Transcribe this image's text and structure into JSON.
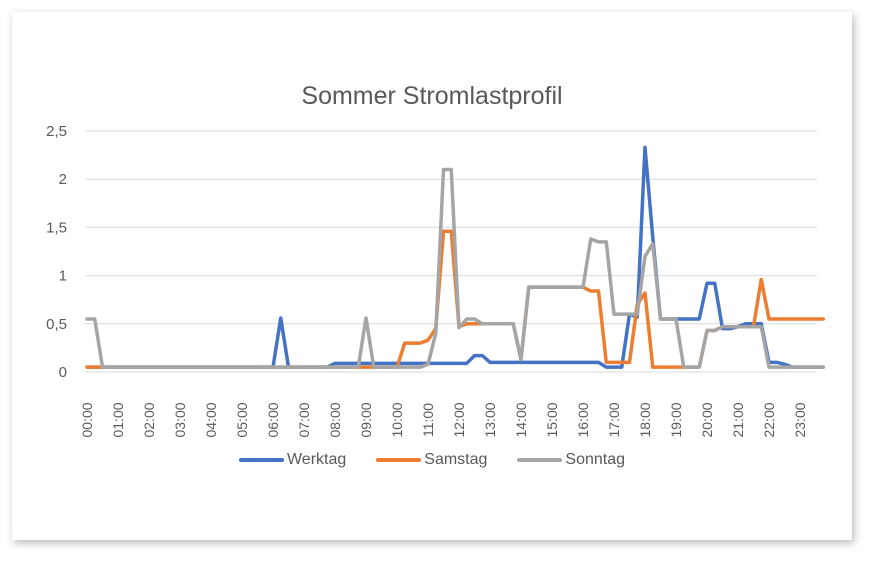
{
  "chart_data": {
    "type": "line",
    "title": "Sommer Stromlastprofil",
    "xlabel": "",
    "ylabel": "",
    "ylim": [
      0,
      2.5
    ],
    "yticks": [
      "0",
      "0,5",
      "1",
      "1,5",
      "2",
      "2,5"
    ],
    "ytick_values": [
      0,
      0.5,
      1,
      1.5,
      2,
      2.5
    ],
    "grid": true,
    "legend_position": "bottom",
    "x_tick_labels": [
      "00:00",
      "01:00",
      "02:00",
      "03:00",
      "04:00",
      "05:00",
      "06:00",
      "07:00",
      "08:00",
      "09:00",
      "10:00",
      "11:00",
      "12:00",
      "13:00",
      "14:00",
      "15:00",
      "16:00",
      "17:00",
      "18:00",
      "19:00",
      "20:00",
      "21:00",
      "22:00",
      "23:00"
    ],
    "x_interval_minutes": 15,
    "points_per_series": 96,
    "series": [
      {
        "name": "Werktag",
        "color": "#4472C4",
        "values": [
          0.05,
          0.05,
          0.05,
          0.05,
          0.05,
          0.05,
          0.05,
          0.05,
          0.05,
          0.05,
          0.05,
          0.05,
          0.05,
          0.05,
          0.05,
          0.05,
          0.05,
          0.05,
          0.05,
          0.05,
          0.05,
          0.05,
          0.05,
          0.05,
          0.05,
          0.56,
          0.05,
          0.05,
          0.05,
          0.05,
          0.05,
          0.05,
          0.09,
          0.09,
          0.09,
          0.09,
          0.09,
          0.09,
          0.09,
          0.09,
          0.09,
          0.09,
          0.09,
          0.09,
          0.09,
          0.09,
          0.09,
          0.09,
          0.09,
          0.09,
          0.17,
          0.17,
          0.1,
          0.1,
          0.1,
          0.1,
          0.1,
          0.1,
          0.1,
          0.1,
          0.1,
          0.1,
          0.1,
          0.1,
          0.1,
          0.1,
          0.1,
          0.05,
          0.05,
          0.05,
          0.6,
          0.57,
          2.33,
          1.4,
          0.55,
          0.55,
          0.55,
          0.55,
          0.55,
          0.55,
          0.92,
          0.92,
          0.45,
          0.45,
          0.47,
          0.5,
          0.5,
          0.5,
          0.1,
          0.1,
          0.08,
          0.05,
          0.05,
          0.05,
          0.05,
          0.05
        ]
      },
      {
        "name": "Samstag",
        "color": "#ED7D31",
        "values": [
          0.05,
          0.05,
          0.05,
          0.05,
          0.05,
          0.05,
          0.05,
          0.05,
          0.05,
          0.05,
          0.05,
          0.05,
          0.05,
          0.05,
          0.05,
          0.05,
          0.05,
          0.05,
          0.05,
          0.05,
          0.05,
          0.05,
          0.05,
          0.05,
          0.05,
          0.05,
          0.05,
          0.05,
          0.05,
          0.05,
          0.05,
          0.05,
          0.05,
          0.05,
          0.05,
          0.05,
          0.05,
          0.05,
          0.05,
          0.05,
          0.05,
          0.3,
          0.3,
          0.3,
          0.33,
          0.45,
          1.46,
          1.46,
          0.47,
          0.5,
          0.5,
          0.5,
          0.5,
          0.5,
          0.5,
          0.5,
          0.13,
          0.88,
          0.88,
          0.88,
          0.88,
          0.88,
          0.88,
          0.88,
          0.88,
          0.84,
          0.84,
          0.1,
          0.1,
          0.1,
          0.1,
          0.7,
          0.82,
          0.05,
          0.05,
          0.05,
          0.05,
          0.05,
          0.05,
          0.05,
          0.43,
          0.43,
          0.47,
          0.47,
          0.47,
          0.47,
          0.47,
          0.96,
          0.55,
          0.55,
          0.55,
          0.55,
          0.55,
          0.55,
          0.55,
          0.55
        ]
      },
      {
        "name": "Sonntag",
        "color": "#A5A5A5",
        "values": [
          0.55,
          0.55,
          0.05,
          0.05,
          0.05,
          0.05,
          0.05,
          0.05,
          0.05,
          0.05,
          0.05,
          0.05,
          0.05,
          0.05,
          0.05,
          0.05,
          0.05,
          0.05,
          0.05,
          0.05,
          0.05,
          0.05,
          0.05,
          0.05,
          0.05,
          0.05,
          0.05,
          0.05,
          0.05,
          0.05,
          0.05,
          0.05,
          0.05,
          0.05,
          0.05,
          0.05,
          0.56,
          0.05,
          0.05,
          0.05,
          0.05,
          0.05,
          0.05,
          0.05,
          0.08,
          0.4,
          2.1,
          2.1,
          0.46,
          0.55,
          0.55,
          0.5,
          0.5,
          0.5,
          0.5,
          0.5,
          0.13,
          0.88,
          0.88,
          0.88,
          0.88,
          0.88,
          0.88,
          0.88,
          0.88,
          1.38,
          1.35,
          1.35,
          0.6,
          0.6,
          0.6,
          0.6,
          1.2,
          1.33,
          0.55,
          0.55,
          0.55,
          0.05,
          0.05,
          0.05,
          0.43,
          0.43,
          0.47,
          0.47,
          0.47,
          0.47,
          0.47,
          0.47,
          0.05,
          0.05,
          0.05,
          0.05,
          0.05,
          0.05,
          0.05,
          0.05
        ]
      }
    ]
  },
  "legend": {
    "items": [
      {
        "label": "Werktag",
        "color": "#4472C4"
      },
      {
        "label": "Samstag",
        "color": "#ED7D31"
      },
      {
        "label": "Sonntag",
        "color": "#A5A5A5"
      }
    ]
  }
}
